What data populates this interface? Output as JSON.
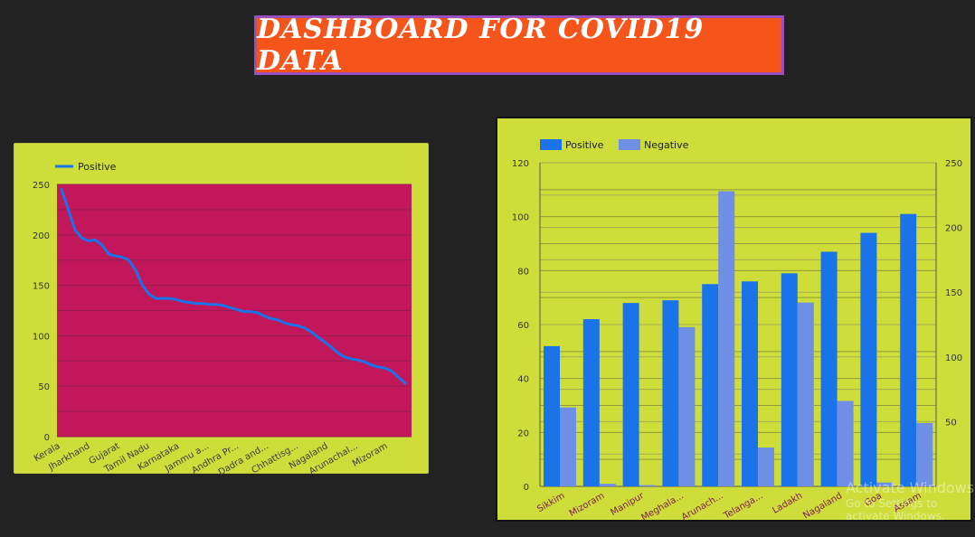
{
  "header": {
    "title": "DASHBOARD  FOR  COVID19 DATA"
  },
  "watermark": {
    "line1": "Activate Windows",
    "line2": "Go to Settings to activate Windows."
  },
  "colors": {
    "positive": "#1a73e8",
    "negative": "#6f8fe6",
    "plot1_bg": "#c2185b",
    "panel_bg": "#cedd39"
  },
  "chart_data": [
    {
      "type": "line",
      "legend": [
        "Positive"
      ],
      "legend_position": "top-left",
      "x_tick_labels": [
        "Kerala",
        "Jharkhand",
        "Gujarat",
        "Tamil Nadu",
        "Karnataka",
        "Jammu a...",
        "Andhra Pr...",
        "Dadra and...",
        "Chhattisg...",
        "Nagaland",
        "Arunachal...",
        "Mizoram"
      ],
      "y_ticks": [
        0,
        50,
        100,
        150,
        200,
        250
      ],
      "ylim": [
        0,
        250
      ],
      "series": [
        {
          "name": "Positive",
          "values": [
            245,
            225,
            205,
            197,
            194,
            195,
            190,
            181,
            179,
            178,
            175,
            165,
            150,
            141,
            137,
            137,
            137,
            136,
            134,
            133,
            132,
            132,
            131,
            131,
            130,
            128,
            126,
            124,
            124,
            123,
            120,
            117,
            116,
            113,
            111,
            110,
            108,
            104,
            99,
            94,
            89,
            83,
            79,
            77,
            76,
            74,
            71,
            69,
            68,
            65,
            59,
            53
          ]
        }
      ]
    },
    {
      "type": "bar",
      "legend": [
        "Positive",
        "Negative"
      ],
      "legend_position": "top-left",
      "categories": [
        "Sikkim",
        "Mizoram",
        "Manipur",
        "Meghala...",
        "Arunach...",
        "Telanga...",
        "Ladakh",
        "Nagaland",
        "Goa",
        "Assam"
      ],
      "y_left_ticks": [
        0,
        20,
        40,
        60,
        80,
        100,
        120
      ],
      "y_left_lim": [
        0,
        120
      ],
      "y_right_ticks": [
        50,
        100,
        150,
        200,
        250
      ],
      "y_right_lim": [
        0,
        250
      ],
      "series": [
        {
          "name": "Positive",
          "axis": "left",
          "values": [
            52,
            62,
            68,
            69,
            75,
            76,
            79,
            87,
            94,
            101
          ]
        },
        {
          "name": "Negative",
          "axis": "right",
          "values": [
            61,
            2,
            1,
            123,
            228,
            30,
            142,
            66,
            3,
            49
          ]
        }
      ]
    }
  ]
}
